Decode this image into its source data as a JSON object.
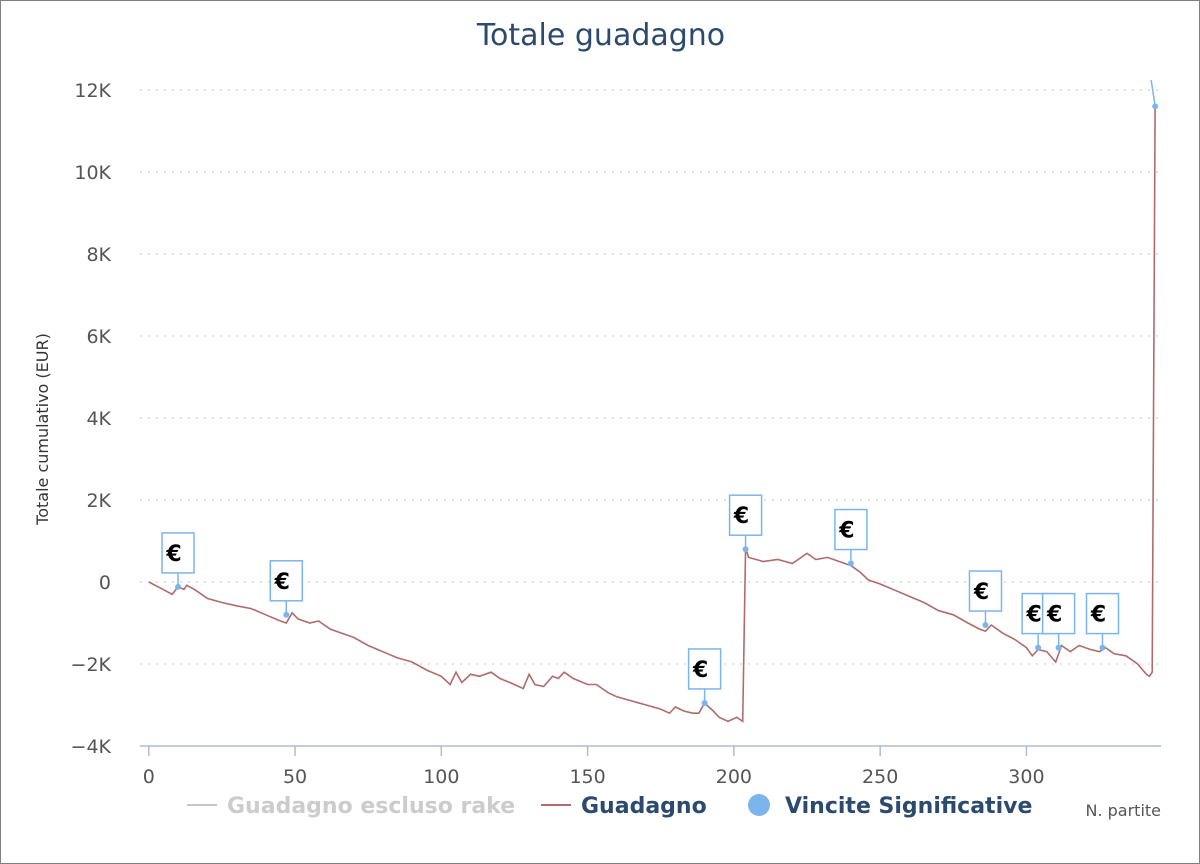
{
  "chart_data": {
    "type": "line",
    "title": "Totale guadagno",
    "ylabel": "Totale cumulativo (EUR)",
    "xlabel": "N. partite",
    "xlim": [
      -3,
      346
    ],
    "ylim": [
      -4000,
      12000
    ],
    "y_ticks": [
      -4000,
      -2000,
      0,
      2000,
      4000,
      6000,
      8000,
      10000,
      12000
    ],
    "y_tick_labels": [
      "−4K",
      "−2K",
      "0",
      "2K",
      "4K",
      "6K",
      "8K",
      "10K",
      "12K"
    ],
    "x_ticks": [
      0,
      50,
      100,
      150,
      200,
      250,
      300
    ],
    "x_tick_labels": [
      "0",
      "50",
      "100",
      "150",
      "200",
      "250",
      "300"
    ],
    "grid": "horizontal dotted",
    "legend_position": "bottom",
    "legend": [
      {
        "name": "Guadagno escluso rake",
        "color": "#c8c8c8",
        "marker": "line",
        "hidden": true
      },
      {
        "name": "Guadagno",
        "color": "#b26b6b",
        "marker": "line"
      },
      {
        "name": "Vincite Significative",
        "color": "#7cb5ec",
        "marker": "circle"
      }
    ],
    "series": [
      {
        "name": "Guadagno",
        "color": "#b26b6b",
        "points": [
          [
            0,
            0
          ],
          [
            4,
            -150
          ],
          [
            8,
            -300
          ],
          [
            10,
            -120
          ],
          [
            12,
            -180
          ],
          [
            13,
            -80
          ],
          [
            16,
            -200
          ],
          [
            20,
            -400
          ],
          [
            25,
            -500
          ],
          [
            30,
            -580
          ],
          [
            35,
            -650
          ],
          [
            40,
            -800
          ],
          [
            45,
            -950
          ],
          [
            47,
            -1000
          ],
          [
            49,
            -750
          ],
          [
            51,
            -900
          ],
          [
            55,
            -1000
          ],
          [
            58,
            -950
          ],
          [
            62,
            -1150
          ],
          [
            66,
            -1250
          ],
          [
            70,
            -1350
          ],
          [
            75,
            -1550
          ],
          [
            80,
            -1700
          ],
          [
            85,
            -1850
          ],
          [
            90,
            -1950
          ],
          [
            95,
            -2150
          ],
          [
            100,
            -2300
          ],
          [
            103,
            -2500
          ],
          [
            105,
            -2200
          ],
          [
            107,
            -2450
          ],
          [
            110,
            -2250
          ],
          [
            113,
            -2300
          ],
          [
            117,
            -2200
          ],
          [
            120,
            -2350
          ],
          [
            125,
            -2500
          ],
          [
            128,
            -2600
          ],
          [
            130,
            -2250
          ],
          [
            132,
            -2500
          ],
          [
            135,
            -2550
          ],
          [
            138,
            -2300
          ],
          [
            140,
            -2350
          ],
          [
            142,
            -2200
          ],
          [
            145,
            -2350
          ],
          [
            150,
            -2500
          ],
          [
            153,
            -2500
          ],
          [
            157,
            -2700
          ],
          [
            160,
            -2800
          ],
          [
            165,
            -2900
          ],
          [
            170,
            -3000
          ],
          [
            175,
            -3100
          ],
          [
            178,
            -3200
          ],
          [
            180,
            -3050
          ],
          [
            183,
            -3150
          ],
          [
            186,
            -3200
          ],
          [
            188,
            -3200
          ],
          [
            190,
            -2950
          ],
          [
            193,
            -3150
          ],
          [
            195,
            -3300
          ],
          [
            198,
            -3400
          ],
          [
            201,
            -3300
          ],
          [
            203,
            -3400
          ],
          [
            204,
            850
          ],
          [
            205,
            600
          ],
          [
            210,
            500
          ],
          [
            215,
            550
          ],
          [
            220,
            450
          ],
          [
            225,
            700
          ],
          [
            228,
            550
          ],
          [
            232,
            600
          ],
          [
            236,
            500
          ],
          [
            240,
            400
          ],
          [
            243,
            250
          ],
          [
            246,
            50
          ],
          [
            250,
            -50
          ],
          [
            255,
            -200
          ],
          [
            260,
            -350
          ],
          [
            265,
            -500
          ],
          [
            270,
            -700
          ],
          [
            275,
            -800
          ],
          [
            280,
            -1000
          ],
          [
            284,
            -1150
          ],
          [
            286,
            -1200
          ],
          [
            288,
            -1050
          ],
          [
            292,
            -1250
          ],
          [
            296,
            -1400
          ],
          [
            300,
            -1600
          ],
          [
            302,
            -1800
          ],
          [
            304,
            -1650
          ],
          [
            307,
            -1700
          ],
          [
            310,
            -1950
          ],
          [
            312,
            -1550
          ],
          [
            315,
            -1700
          ],
          [
            318,
            -1550
          ],
          [
            322,
            -1650
          ],
          [
            325,
            -1700
          ],
          [
            327,
            -1600
          ],
          [
            330,
            -1750
          ],
          [
            334,
            -1800
          ],
          [
            338,
            -2000
          ],
          [
            341,
            -2250
          ],
          [
            342,
            -2300
          ],
          [
            343,
            -2200
          ],
          [
            344,
            11600
          ]
        ]
      },
      {
        "name": "Vincite Significative",
        "color": "#7cb5ec",
        "markers": "€",
        "points": [
          [
            10,
            -120
          ],
          [
            47,
            -800
          ],
          [
            190,
            -2950
          ],
          [
            204,
            800
          ],
          [
            240,
            450
          ],
          [
            286,
            -1050
          ],
          [
            304,
            -1600
          ],
          [
            311,
            -1600
          ],
          [
            326,
            -1600
          ],
          [
            344,
            11600
          ]
        ]
      }
    ]
  }
}
